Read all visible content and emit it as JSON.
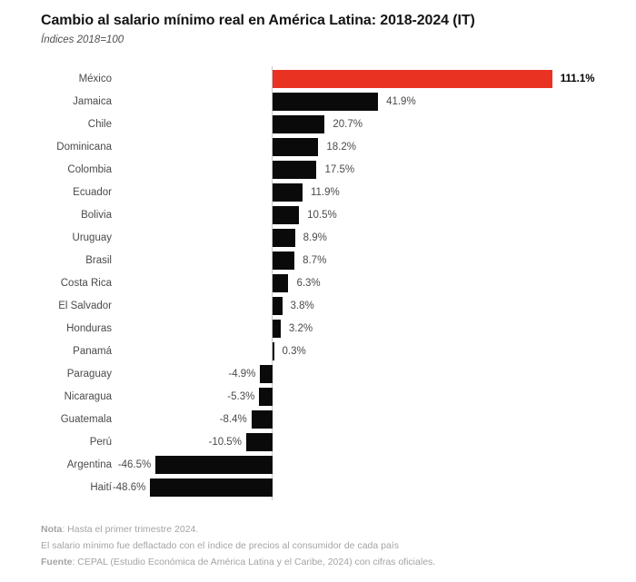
{
  "header": {
    "title": "Cambio al salario mínimo real en América Latina: 2018-2024 (IT)",
    "subtitle": "Índices 2018=100"
  },
  "chart_data": {
    "type": "bar",
    "orientation": "horizontal",
    "title": "Cambio al salario mínimo real en América Latina: 2018-2024 (IT)",
    "subtitle": "Índices 2018=100",
    "unit": "%",
    "categories": [
      "México",
      "Jamaica",
      "Chile",
      "Dominicana",
      "Colombia",
      "Ecuador",
      "Bolivia",
      "Uruguay",
      "Brasil",
      "Costa Rica",
      "El Salvador",
      "Honduras",
      "Panamá",
      "Paraguay",
      "Nicaragua",
      "Guatemala",
      "Perú",
      "Argentina",
      "Haití"
    ],
    "values": [
      111.1,
      41.9,
      20.7,
      18.2,
      17.5,
      11.9,
      10.5,
      8.9,
      8.7,
      6.3,
      3.8,
      3.2,
      0.3,
      -4.9,
      -5.3,
      -8.4,
      -10.5,
      -46.5,
      -48.6
    ],
    "value_labels": [
      "111.1%",
      "41.9%",
      "20.7%",
      "18.2%",
      "17.5%",
      "11.9%",
      "10.5%",
      "8.9%",
      "8.7%",
      "6.3%",
      "3.8%",
      "3.2%",
      "0.3%",
      "-4.9%",
      "-5.3%",
      "-8.4%",
      "-10.5%",
      "-46.5%",
      "-48.6%"
    ],
    "highlight_index": 0,
    "colors": {
      "bar": "#0a0a0a",
      "highlight_bar": "#ea3223",
      "axis_line": "#c9c9c9",
      "country_label": "#4a4a4a",
      "value_label": "#4a4a4a",
      "highlight_value_label": "#000000"
    },
    "xlim": [
      -48.6,
      111.1
    ],
    "grid": false,
    "legend": false
  },
  "footer": {
    "note_label": "Nota",
    "note_text": ": Hasta el primer trimestre 2024.",
    "method_text": "El salario mínimo fue deflactado con el índice de precios al consumidor de cada país",
    "source_label": "Fuente",
    "source_text": ": CEPAL (Estudio Económica de América Latina y el Caribe, 2024) con cifras oficiales."
  }
}
